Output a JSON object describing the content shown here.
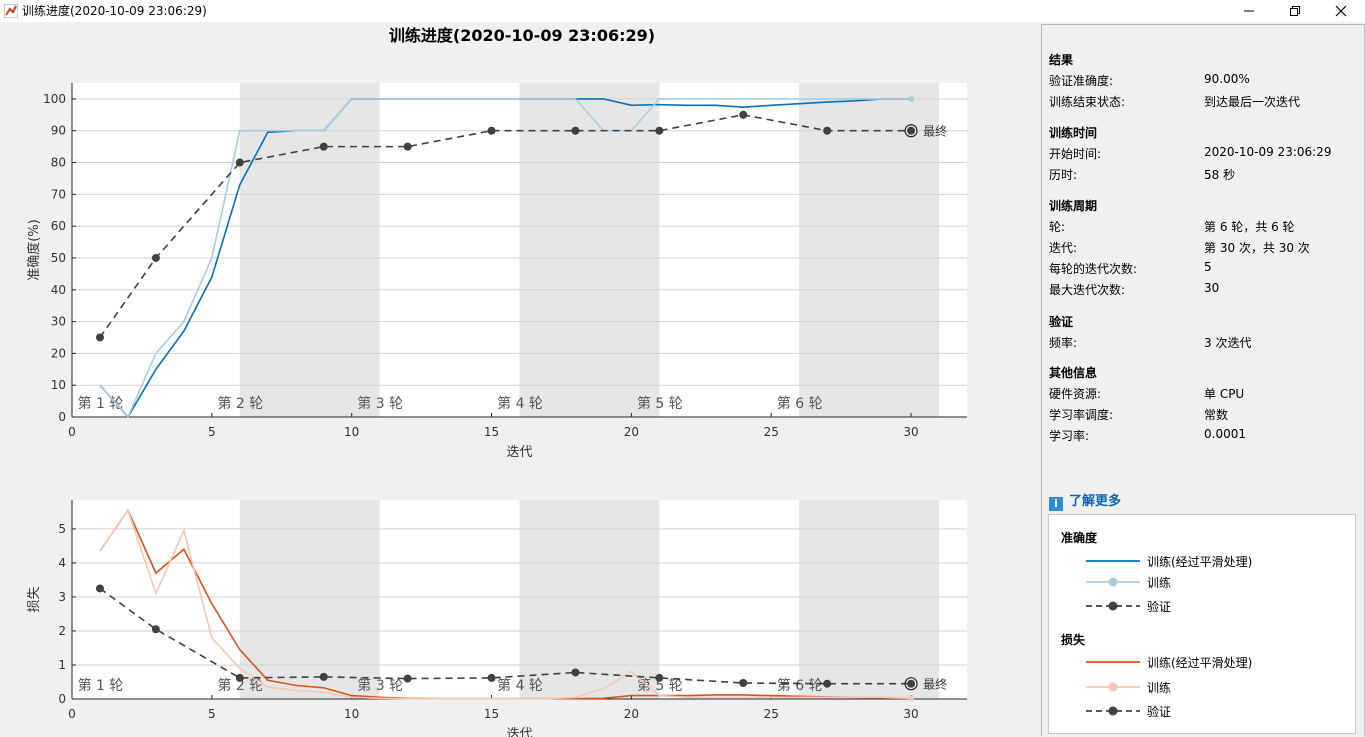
{
  "window": {
    "title": "训练进度(2020-10-09 23:06:29)",
    "min_glyph": "—",
    "max_glyph": "❐",
    "close_glyph": "✕"
  },
  "plot": {
    "title": "训练进度(2020-10-09 23:06:29)",
    "epoch_labels": [
      "第 1 轮",
      "第 2 轮",
      "第 3 轮",
      "第 4 轮",
      "第 5 轮",
      "第 6 轮"
    ],
    "final_label": "最终"
  },
  "chart_data": [
    {
      "type": "line",
      "name": "accuracy",
      "ylabel": "准确度(%)",
      "xlabel": "迭代",
      "xlim": [
        0,
        32
      ],
      "ylim": [
        0,
        105
      ],
      "xticks": [
        0,
        5,
        10,
        15,
        20,
        25,
        30
      ],
      "yticks": [
        0,
        10,
        20,
        30,
        40,
        50,
        60,
        70,
        80,
        90,
        100
      ],
      "grid": true,
      "epoch_shading": [
        [
          6,
          11
        ],
        [
          16,
          21
        ],
        [
          26,
          31
        ]
      ],
      "series": [
        {
          "name": "训练(经过平滑处理)",
          "color": "#0072bd",
          "x": [
            1,
            2,
            3,
            4,
            5,
            6,
            7,
            8,
            9,
            10,
            11,
            12,
            13,
            14,
            15,
            16,
            17,
            18,
            19,
            20,
            21,
            22,
            23,
            24,
            25,
            26,
            27,
            28,
            29,
            30
          ],
          "y": [
            10,
            0,
            15,
            27,
            44,
            73,
            89.5,
            90,
            90,
            100,
            100,
            100,
            100,
            100,
            100,
            100,
            100,
            100,
            100,
            98,
            98.2,
            98,
            98,
            97.4,
            98,
            98.5,
            99,
            99.4,
            100,
            100
          ]
        },
        {
          "name": "训练",
          "color": "#a6cee3",
          "x": [
            1,
            2,
            3,
            4,
            5,
            6,
            7,
            8,
            9,
            10,
            11,
            12,
            13,
            14,
            15,
            16,
            17,
            18,
            19,
            20,
            21,
            22,
            23,
            24,
            25,
            26,
            27,
            28,
            29,
            30
          ],
          "y": [
            10,
            0,
            20,
            30,
            50,
            90,
            90,
            90,
            90,
            100,
            100,
            100,
            100,
            100,
            100,
            100,
            100,
            100,
            90,
            90,
            100,
            100,
            100,
            100,
            100,
            100,
            100,
            100,
            100,
            100
          ]
        },
        {
          "name": "验证",
          "color": "#404040",
          "dashed": true,
          "x": [
            1,
            3,
            6,
            9,
            12,
            15,
            18,
            21,
            24,
            27,
            30
          ],
          "y": [
            25,
            50,
            80,
            85,
            85,
            90,
            90,
            90,
            95,
            90,
            90
          ]
        }
      ]
    },
    {
      "type": "line",
      "name": "loss",
      "ylabel": "损失",
      "xlabel": "迭代",
      "xlim": [
        0,
        32
      ],
      "ylim": [
        0,
        5.85
      ],
      "xticks": [
        0,
        5,
        10,
        15,
        20,
        25,
        30
      ],
      "yticks": [
        0,
        1,
        2,
        3,
        4,
        5
      ],
      "grid": true,
      "epoch_shading": [
        [
          6,
          11
        ],
        [
          16,
          21
        ],
        [
          26,
          31
        ]
      ],
      "series": [
        {
          "name": "训练(经过平滑处理)",
          "color": "#d95319",
          "x": [
            1,
            2,
            3,
            4,
            5,
            6,
            7,
            8,
            9,
            10,
            11,
            12,
            13,
            14,
            15,
            16,
            17,
            18,
            19,
            20,
            21,
            22,
            23,
            24,
            25,
            26,
            27,
            28,
            29,
            30
          ],
          "y": [
            4.35,
            5.55,
            3.7,
            4.4,
            2.8,
            1.45,
            0.55,
            0.4,
            0.33,
            0.1,
            0.05,
            0.02,
            0.01,
            0.01,
            0.01,
            0.01,
            0.01,
            0.01,
            0.02,
            0.1,
            0.1,
            0.1,
            0.12,
            0.12,
            0.1,
            0.08,
            0.06,
            0.05,
            0.03,
            0.02
          ]
        },
        {
          "name": "训练",
          "color": "#f4c7b4",
          "x": [
            1,
            2,
            3,
            4,
            5,
            6,
            7,
            8,
            9,
            10,
            11,
            12,
            13,
            14,
            15,
            16,
            17,
            18,
            19,
            20,
            21,
            22,
            23,
            24,
            25,
            26,
            27,
            28,
            29,
            30
          ],
          "y": [
            4.35,
            5.55,
            3.1,
            4.95,
            1.8,
            0.9,
            0.35,
            0.25,
            0.2,
            0.05,
            0.02,
            0.01,
            0.01,
            0.01,
            0.01,
            0.01,
            0.01,
            0.05,
            0.3,
            0.8,
            0.1,
            0.05,
            0.05,
            0.05,
            0.05,
            0.05,
            0.05,
            0.05,
            0.05,
            0.02
          ]
        },
        {
          "name": "验证",
          "color": "#404040",
          "dashed": true,
          "x": [
            1,
            3,
            6,
            9,
            12,
            15,
            18,
            21,
            24,
            27,
            30
          ],
          "y": [
            3.25,
            2.05,
            0.62,
            0.65,
            0.6,
            0.62,
            0.78,
            0.62,
            0.47,
            0.45,
            0.45
          ]
        }
      ]
    }
  ],
  "sidebar": {
    "sections": [
      {
        "title": "结果",
        "rows": [
          {
            "k": "验证准确度:",
            "v": "90.00%"
          },
          {
            "k": "训练结束状态:",
            "v": "到达最后一次迭代"
          }
        ]
      },
      {
        "title": "训练时间",
        "rows": [
          {
            "k": "开始时间:",
            "v": "2020-10-09 23:06:29"
          },
          {
            "k": "历时:",
            "v": "58 秒"
          }
        ]
      },
      {
        "title": "训练周期",
        "rows": [
          {
            "k": "轮:",
            "v": "第 6 轮，共 6 轮"
          },
          {
            "k": "迭代:",
            "v": "第 30 次，共 30 次"
          },
          {
            "k": "每轮的迭代次数:",
            "v": "5"
          },
          {
            "k": "最大迭代次数:",
            "v": "30"
          }
        ]
      },
      {
        "title": "验证",
        "rows": [
          {
            "k": "频率:",
            "v": "3 次迭代"
          }
        ]
      },
      {
        "title": "其他信息",
        "rows": [
          {
            "k": "硬件资源:",
            "v": "单 CPU"
          },
          {
            "k": "学习率调度:",
            "v": "常数"
          },
          {
            "k": "学习率:",
            "v": "0.0001"
          }
        ]
      }
    ],
    "learn_more": "了解更多",
    "info_glyph": "i"
  },
  "legend": {
    "groups": [
      {
        "title": "准确度",
        "items": [
          {
            "label": "训练(经过平滑处理)",
            "color": "#0072bd",
            "style": "line"
          },
          {
            "label": "训练",
            "color": "#a6cee3",
            "style": "marker"
          },
          {
            "label": "验证",
            "color": "#404040",
            "style": "dashed"
          }
        ]
      },
      {
        "title": "损失",
        "items": [
          {
            "label": "训练(经过平滑处理)",
            "color": "#d95319",
            "style": "line"
          },
          {
            "label": "训练",
            "color": "#f4c7b4",
            "style": "marker"
          },
          {
            "label": "验证",
            "color": "#404040",
            "style": "dashed"
          }
        ]
      }
    ]
  }
}
